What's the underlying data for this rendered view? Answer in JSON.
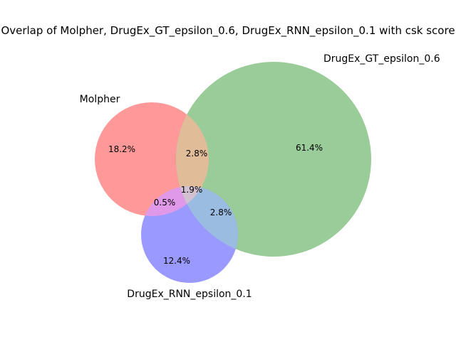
{
  "chart_data": {
    "type": "venn",
    "title": "Overlap of Molpher, DrugEx_GT_epsilon_0.6, DrugEx_RNN_epsilon_0.1 with csk score",
    "sets": [
      {
        "name": "Molpher",
        "color": "#ff9999"
      },
      {
        "name": "DrugEx_GT_epsilon_0.6",
        "color": "#99cc99"
      },
      {
        "name": "DrugEx_RNN_epsilon_0.1",
        "color": "#9999ff"
      }
    ],
    "regions": [
      {
        "sets": [
          "Molpher"
        ],
        "label": "18.2%",
        "value": 18.2
      },
      {
        "sets": [
          "DrugEx_GT_epsilon_0.6"
        ],
        "label": "61.4%",
        "value": 61.4
      },
      {
        "sets": [
          "DrugEx_RNN_epsilon_0.1"
        ],
        "label": "12.4%",
        "value": 12.4
      },
      {
        "sets": [
          "Molpher",
          "DrugEx_GT_epsilon_0.6"
        ],
        "label": "2.8%",
        "value": 2.8
      },
      {
        "sets": [
          "Molpher",
          "DrugEx_RNN_epsilon_0.1"
        ],
        "label": "0.5%",
        "value": 0.5
      },
      {
        "sets": [
          "DrugEx_GT_epsilon_0.6",
          "DrugEx_RNN_epsilon_0.1"
        ],
        "label": "2.8%",
        "value": 2.8
      },
      {
        "sets": [
          "Molpher",
          "DrugEx_GT_epsilon_0.6",
          "DrugEx_RNN_epsilon_0.1"
        ],
        "label": "1.9%",
        "value": 1.9
      }
    ],
    "region_colors": {
      "Molpher&DrugEx_GT_epsilon_0.6": "#e0bc99",
      "Molpher&DrugEx_RNN_epsilon_0.1": "#e099e8",
      "DrugEx_GT_epsilon_0.6&DrugEx_RNN_epsilon_0.1": "#99bce0",
      "Molpher&DrugEx_GT_epsilon_0.6&DrugEx_RNN_epsilon_0.1": "#d1c1d1"
    }
  }
}
